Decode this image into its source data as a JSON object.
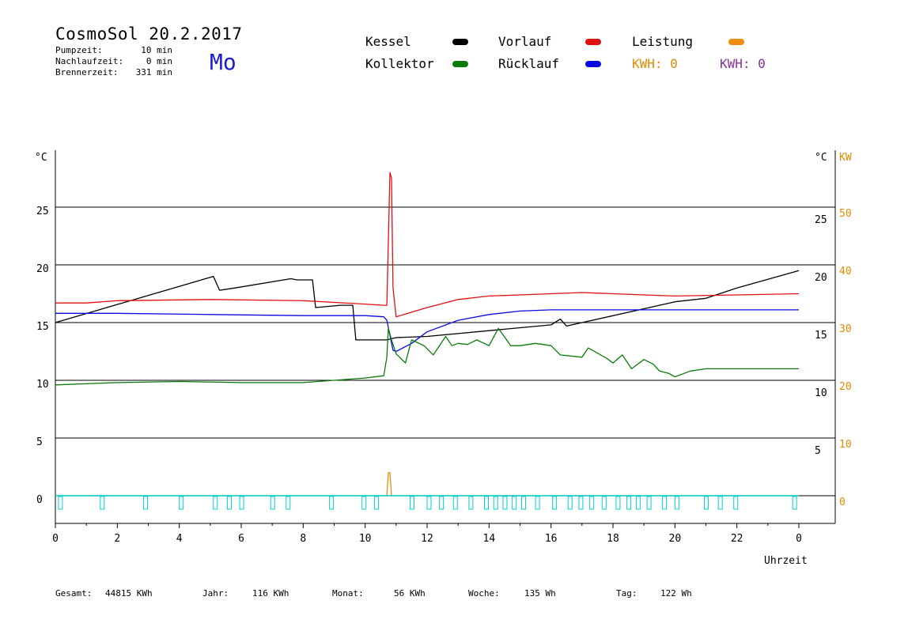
{
  "header": {
    "title": "CosmoSol 20.2.2017",
    "day": "Mo",
    "info": [
      {
        "label": "Pumpzeit:",
        "value": "10 min"
      },
      {
        "label": "Nachlaufzeit:",
        "value": "0 min"
      },
      {
        "label": "Brennerzeit:",
        "value": "331 min"
      }
    ]
  },
  "legend": {
    "kessel": {
      "label": "Kessel",
      "color": "#000000"
    },
    "kollektor": {
      "label": "Kollektor",
      "color": "#0a7a0a"
    },
    "vorlauf": {
      "label": "Vorlauf",
      "color": "#e01010"
    },
    "ruecklauf": {
      "label": "Rücklauf",
      "color": "#0a0ae0"
    },
    "leistung": {
      "label": "Leistung",
      "color": "#f08a10"
    },
    "kwh1": "KWH: 0",
    "kwh2": "KWH: 0"
  },
  "axes": {
    "left_unit": "°C",
    "right_unit": "°C",
    "right_unit2": "KW",
    "xlabel": "Uhrzeit"
  },
  "footer": {
    "gesamt_label": "Gesamt:",
    "gesamt": "44815 KWh",
    "jahr_label": "Jahr:",
    "jahr": "116 KWh",
    "monat_label": "Monat:",
    "monat": "56 KWh",
    "woche_label": "Woche:",
    "woche": "135 Wh",
    "tag_label": "Tag:",
    "tag": "122 Wh"
  },
  "chart_data": {
    "type": "line",
    "xlabel": "Uhrzeit",
    "ylabel": "°C",
    "xlim": [
      0,
      24
    ],
    "ylim": [
      -2,
      30
    ],
    "x_ticks": [
      "0",
      "2",
      "4",
      "6",
      "8",
      "10",
      "12",
      "14",
      "16",
      "18",
      "20",
      "22",
      "0"
    ],
    "y_ticks_left": [
      "0",
      "5",
      "10",
      "15",
      "20",
      "25"
    ],
    "y_ticks_right": [
      "5",
      "10",
      "15",
      "20",
      "25"
    ],
    "y2_ticks": [
      "0",
      "10",
      "20",
      "30",
      "40",
      "50"
    ],
    "gridlines": [
      5,
      10,
      15,
      20,
      25
    ],
    "series": [
      {
        "name": "Kessel",
        "color": "#000000",
        "x": [
          0,
          5.1,
          5.3,
          5.8,
          7.6,
          7.8,
          8.3,
          8.4,
          9.2,
          9.6,
          9.7,
          10.7,
          11.0,
          12.0,
          16.0,
          16.3,
          16.5,
          20.0,
          21.0,
          22.0,
          24.0
        ],
        "y": [
          15,
          19,
          17.8,
          18,
          18.8,
          18.7,
          18.7,
          16.3,
          16.5,
          16.5,
          13.5,
          13.5,
          13.7,
          13.8,
          14.8,
          15.3,
          14.7,
          16.8,
          17.1,
          18,
          19.5
        ]
      },
      {
        "name": "Vorlauf",
        "color": "#e01010",
        "x": [
          0,
          1.0,
          2.0,
          5.0,
          8.0,
          10.0,
          10.6,
          10.7,
          10.75,
          10.8,
          10.85,
          10.9,
          11.0,
          12.0,
          13.0,
          14.0,
          15.0,
          16.0,
          17.0,
          18.0,
          19.0,
          20.0,
          22.0,
          24.0
        ],
        "y": [
          16.7,
          16.7,
          16.9,
          17.0,
          16.9,
          16.6,
          16.5,
          16.5,
          22.0,
          28.0,
          27.5,
          18.0,
          15.5,
          16.3,
          17.0,
          17.3,
          17.4,
          17.5,
          17.6,
          17.5,
          17.4,
          17.3,
          17.4,
          17.5
        ]
      },
      {
        "name": "Rücklauf",
        "color": "#0a0ae0",
        "x": [
          0,
          2.0,
          5.0,
          8.0,
          10.0,
          10.6,
          10.7,
          10.9,
          11.0,
          11.5,
          12.0,
          13.0,
          14.0,
          15.0,
          16.0,
          18.0,
          20.0,
          22.0,
          24.0
        ],
        "y": [
          15.8,
          15.8,
          15.7,
          15.6,
          15.6,
          15.5,
          15.2,
          12.6,
          12.5,
          13.2,
          14.2,
          15.2,
          15.7,
          16.0,
          16.1,
          16.1,
          16.1,
          16.1,
          16.1
        ]
      },
      {
        "name": "Kollektor",
        "color": "#0a7a0a",
        "x": [
          0,
          2.0,
          4.0,
          6.0,
          8.0,
          9.0,
          10.0,
          10.6,
          10.7,
          10.75,
          10.85,
          11.0,
          11.3,
          11.5,
          11.9,
          12.2,
          12.6,
          12.8,
          13.0,
          13.3,
          13.6,
          14.0,
          14.3,
          14.7,
          15.0,
          15.5,
          16.0,
          16.3,
          17.0,
          17.2,
          17.8,
          18.0,
          18.3,
          18.6,
          19.0,
          19.3,
          19.5,
          19.8,
          20.0,
          20.5,
          21.0,
          22.0,
          24.0
        ],
        "y": [
          9.6,
          9.8,
          9.9,
          9.8,
          9.8,
          10.0,
          10.2,
          10.4,
          12.0,
          14.5,
          13.5,
          12.3,
          11.5,
          13.5,
          13.0,
          12.2,
          13.8,
          13.0,
          13.2,
          13.1,
          13.5,
          13.0,
          14.5,
          13.0,
          13.0,
          13.2,
          13.0,
          12.2,
          12.0,
          12.8,
          11.9,
          11.5,
          12.2,
          11.0,
          11.8,
          11.4,
          10.8,
          10.6,
          10.3,
          10.8,
          11.0,
          11.0,
          11.0
        ]
      },
      {
        "name": "Leistung",
        "color": "#f08a10",
        "x": [
          0,
          10.7,
          10.75,
          10.8,
          10.85,
          24.0
        ],
        "y": [
          0,
          0,
          2.0,
          2.0,
          0,
          0
        ]
      }
    ]
  }
}
